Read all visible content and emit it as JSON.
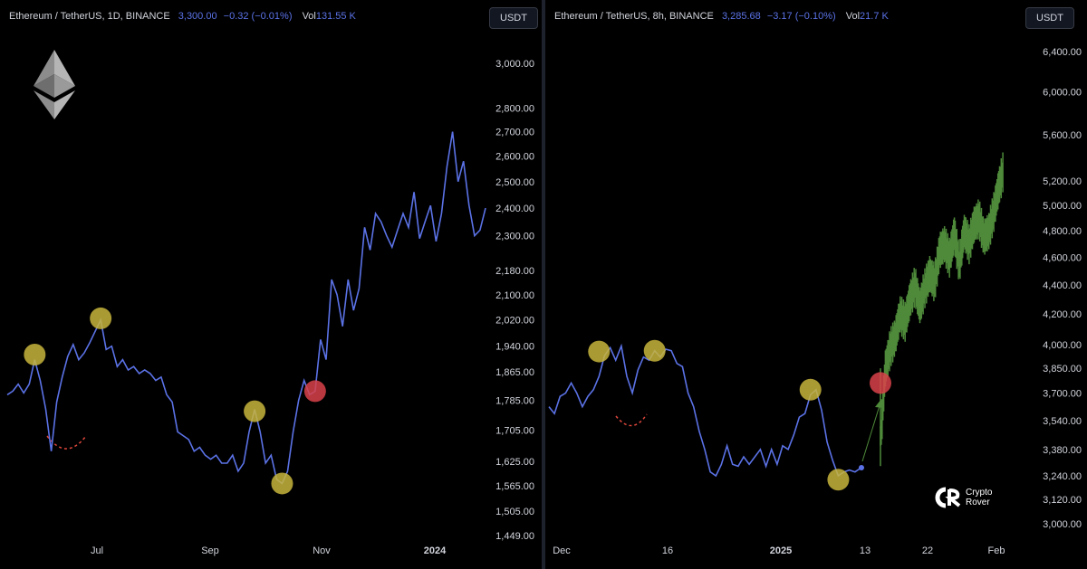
{
  "left": {
    "symbol": "Ethereum / TetherUS, 1D, BINANCE",
    "price": "3,300.00",
    "change": "−0.32 (−0.01%)",
    "vol_label": "Vol",
    "vol_value": "131.55 K",
    "currency_button": "USDT",
    "price_labels": [
      "3,000.00",
      "2,800.00",
      "2,700.00",
      "2,600.00",
      "2,500.00",
      "2,400.00",
      "2,300.00",
      "2,180.00",
      "2,100.00",
      "2,020.00",
      "1,940.00",
      "1,865.00",
      "1,785.00",
      "1,705.00",
      "1,625.00",
      "1,565.00",
      "1,505.00",
      "1,449.00"
    ],
    "time_labels": [
      "Jul",
      "Sep",
      "Nov",
      "2024"
    ]
  },
  "right": {
    "symbol": "Ethereum / TetherUS, 8h, BINANCE",
    "price": "3,285.68",
    "change": "−3.17 (−0.10%)",
    "vol_label": "Vol",
    "vol_value": "21.7 K",
    "currency_button": "USDT",
    "price_labels": [
      "6,400.00",
      "6,000.00",
      "5,600.00",
      "5,200.00",
      "5,000.00",
      "4,800.00",
      "4,600.00",
      "4,400.00",
      "4,200.00",
      "4,000.00",
      "3,850.00",
      "3,700.00",
      "3,540.00",
      "3,380.00",
      "3,240.00",
      "3,120.00",
      "3,000.00"
    ],
    "time_labels": [
      "Dec",
      "16",
      "2025",
      "13",
      "22",
      "Feb"
    ]
  },
  "watermark": {
    "line1": "Crypto",
    "line2": "Rover"
  },
  "colors": {
    "line": "#5b72e6",
    "projection": "#4e8a3a",
    "marker_yellow": "#c8b53c",
    "marker_red": "#d9424a",
    "dashed_curve": "#e0473c"
  },
  "chart_data": [
    {
      "type": "line",
      "title": "Ethereum / TetherUS, 1D, BINANCE",
      "x_ticks": [
        "Jul",
        "Sep",
        "Nov",
        "2024"
      ],
      "y_ticks": [
        3000,
        2800,
        2700,
        2600,
        2500,
        2400,
        2300,
        2180,
        2100,
        2020,
        1940,
        1865,
        1785,
        1705,
        1625,
        1565,
        1505,
        1449
      ],
      "ylim": [
        1449,
        3000
      ],
      "y_scale": "log",
      "series": [
        {
          "values": [
            1800,
            1810,
            1830,
            1805,
            1830,
            1900,
            1840,
            1760,
            1650,
            1780,
            1850,
            1910,
            1945,
            1900,
            1920,
            1950,
            1985,
            2020,
            1930,
            1940,
            1880,
            1900,
            1870,
            1880,
            1860,
            1870,
            1860,
            1840,
            1850,
            1800,
            1780,
            1700,
            1690,
            1680,
            1650,
            1660,
            1640,
            1630,
            1640,
            1620,
            1620,
            1640,
            1600,
            1620,
            1700,
            1760,
            1700,
            1620,
            1640,
            1580,
            1570,
            1600,
            1700,
            1785,
            1840,
            1800,
            1810,
            1960,
            1900,
            2150,
            2100,
            2000,
            2150,
            2050,
            2120,
            2330,
            2250,
            2380,
            2350,
            2300,
            2260,
            2320,
            2380,
            2330,
            2460,
            2290,
            2350,
            2410,
            2280,
            2380,
            2560,
            2700,
            2500,
            2580,
            2410,
            2300,
            2320,
            2400
          ]
        }
      ],
      "markers": [
        {
          "x_index": 5,
          "value": 1915,
          "kind": "yellow"
        },
        {
          "x_index": 17,
          "value": 2025,
          "kind": "yellow"
        },
        {
          "x_index": 45,
          "value": 1755,
          "kind": "yellow"
        },
        {
          "x_index": 50,
          "value": 1570,
          "kind": "yellow"
        },
        {
          "x_index": 56,
          "value": 1810,
          "kind": "red"
        }
      ]
    },
    {
      "type": "line",
      "title": "Ethereum / TetherUS, 8h, BINANCE",
      "x_ticks": [
        "Dec",
        "16",
        "2025",
        "13",
        "22",
        "Feb"
      ],
      "y_ticks": [
        6400,
        6000,
        5600,
        5200,
        5000,
        4800,
        4600,
        4400,
        4200,
        4000,
        3850,
        3700,
        3540,
        3380,
        3240,
        3120,
        3000
      ],
      "ylim": [
        3000,
        6400
      ],
      "y_scale": "log",
      "series": [
        {
          "values": [
            3620,
            3580,
            3680,
            3700,
            3760,
            3700,
            3620,
            3680,
            3720,
            3800,
            3930,
            3980,
            3900,
            3990,
            3800,
            3700,
            3840,
            3920,
            3900,
            3960,
            3920,
            3970,
            3960,
            3880,
            3860,
            3700,
            3620,
            3480,
            3380,
            3260,
            3240,
            3300,
            3400,
            3300,
            3290,
            3340,
            3300,
            3340,
            3380,
            3290,
            3380,
            3300,
            3400,
            3380,
            3460,
            3560,
            3580,
            3690,
            3720,
            3600,
            3420,
            3320,
            3240,
            3260,
            3270,
            3260,
            3280
          ]
        },
        {
          "values": [
            3400,
            3850,
            3980,
            4050,
            4200,
            4150,
            4300,
            4400,
            4250,
            4380,
            4480,
            4420,
            4650,
            4700,
            4600,
            4780,
            4550,
            4800,
            4700,
            4850,
            4900,
            4750,
            4800,
            4950,
            5150,
            5300
          ]
        }
      ],
      "markers": [
        {
          "x_index": 9,
          "value": 3955,
          "kind": "yellow"
        },
        {
          "x_index": 19,
          "value": 3960,
          "kind": "yellow"
        },
        {
          "x_index": 47,
          "value": 3720,
          "kind": "yellow"
        },
        {
          "x_index": 52,
          "value": 3220,
          "kind": "yellow"
        },
        {
          "x_index": 57,
          "value": 3760,
          "kind": "red"
        }
      ]
    }
  ]
}
